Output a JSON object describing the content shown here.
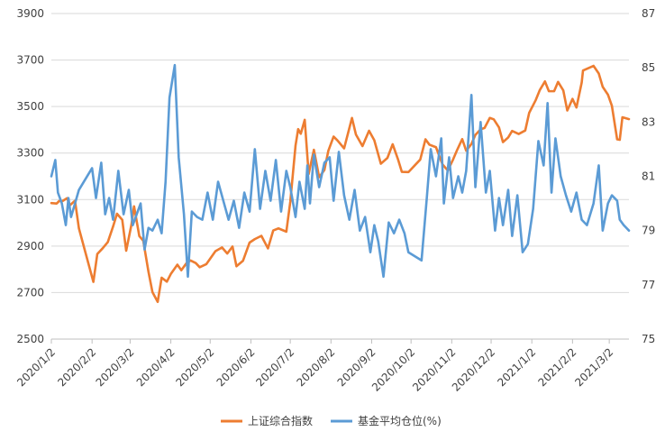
{
  "chart_data": {
    "type": "line",
    "title": "",
    "xlabel": "",
    "ylabel": "",
    "x_ticks": [
      "2020/1/2",
      "2020/2/2",
      "2020/3/2",
      "2020/4/2",
      "2020/5/2",
      "2020/6/2",
      "2020/7/2",
      "2020/8/2",
      "2020/9/2",
      "2020/10/2",
      "2020/11/2",
      "2020/12/2",
      "2021/1/2",
      "2021/2/2",
      "2021/3/2"
    ],
    "xlim": [
      "2020-01-02",
      "2021-03-17"
    ],
    "y_left": {
      "ylim": [
        2500,
        3900
      ],
      "ticks": [
        "2500",
        "2700",
        "2900",
        "3100",
        "3300",
        "3500",
        "3700",
        "3900"
      ]
    },
    "y_right": {
      "ylim": [
        75,
        87
      ],
      "ticks": [
        "75",
        "77",
        "79",
        "81",
        "83",
        "85",
        "87"
      ]
    },
    "grid": "horizontal",
    "legend_position": "bottom",
    "series": [
      {
        "name": "上证综合指数",
        "axis": "left",
        "color": "#ED7D31",
        "points": [
          [
            "2020-01-02",
            3085
          ],
          [
            "2020-01-06",
            3083
          ],
          [
            "2020-01-08",
            3094
          ],
          [
            "2020-01-10",
            3092
          ],
          [
            "2020-01-14",
            3106
          ],
          [
            "2020-01-16",
            3075
          ],
          [
            "2020-01-20",
            3095
          ],
          [
            "2020-01-23",
            2976
          ],
          [
            "2020-02-03",
            2746
          ],
          [
            "2020-02-06",
            2866
          ],
          [
            "2020-02-10",
            2890
          ],
          [
            "2020-02-14",
            2917
          ],
          [
            "2020-02-18",
            2984
          ],
          [
            "2020-02-21",
            3039
          ],
          [
            "2020-02-25",
            3013
          ],
          [
            "2020-02-28",
            2880
          ],
          [
            "2020-03-03",
            2992
          ],
          [
            "2020-03-05",
            3071
          ],
          [
            "2020-03-09",
            2943
          ],
          [
            "2020-03-12",
            2923
          ],
          [
            "2020-03-16",
            2789
          ],
          [
            "2020-03-19",
            2702
          ],
          [
            "2020-03-23",
            2660
          ],
          [
            "2020-03-26",
            2764
          ],
          [
            "2020-03-30",
            2747
          ],
          [
            "2020-04-02",
            2780
          ],
          [
            "2020-04-07",
            2820
          ],
          [
            "2020-04-10",
            2796
          ],
          [
            "2020-04-14",
            2827
          ],
          [
            "2020-04-17",
            2838
          ],
          [
            "2020-04-21",
            2827
          ],
          [
            "2020-04-24",
            2809
          ],
          [
            "2020-04-29",
            2822
          ],
          [
            "2020-05-06",
            2878
          ],
          [
            "2020-05-11",
            2894
          ],
          [
            "2020-05-15",
            2868
          ],
          [
            "2020-05-19",
            2898
          ],
          [
            "2020-05-22",
            2813
          ],
          [
            "2020-05-27",
            2837
          ],
          [
            "2020-06-01",
            2915
          ],
          [
            "2020-06-05",
            2930
          ],
          [
            "2020-06-10",
            2944
          ],
          [
            "2020-06-15",
            2890
          ],
          [
            "2020-06-19",
            2967
          ],
          [
            "2020-06-23",
            2976
          ],
          [
            "2020-06-29",
            2962
          ],
          [
            "2020-07-02",
            3090
          ],
          [
            "2020-07-06",
            3332
          ],
          [
            "2020-07-08",
            3403
          ],
          [
            "2020-07-10",
            3383
          ],
          [
            "2020-07-13",
            3443
          ],
          [
            "2020-07-16",
            3210
          ],
          [
            "2020-07-20",
            3314
          ],
          [
            "2020-07-24",
            3196
          ],
          [
            "2020-07-28",
            3227
          ],
          [
            "2020-07-31",
            3310
          ],
          [
            "2020-08-04",
            3371
          ],
          [
            "2020-08-07",
            3354
          ],
          [
            "2020-08-12",
            3320
          ],
          [
            "2020-08-18",
            3451
          ],
          [
            "2020-08-21",
            3380
          ],
          [
            "2020-08-26",
            3330
          ],
          [
            "2020-08-31",
            3396
          ],
          [
            "2020-09-04",
            3355
          ],
          [
            "2020-09-09",
            3254
          ],
          [
            "2020-09-14",
            3279
          ],
          [
            "2020-09-18",
            3338
          ],
          [
            "2020-09-22",
            3274
          ],
          [
            "2020-09-25",
            3219
          ],
          [
            "2020-09-30",
            3218
          ],
          [
            "2020-10-09",
            3272
          ],
          [
            "2020-10-13",
            3359
          ],
          [
            "2020-10-16",
            3336
          ],
          [
            "2020-10-21",
            3325
          ],
          [
            "2020-10-26",
            3251
          ],
          [
            "2020-10-30",
            3225
          ],
          [
            "2020-11-03",
            3272
          ],
          [
            "2020-11-06",
            3312
          ],
          [
            "2020-11-10",
            3360
          ],
          [
            "2020-11-13",
            3310
          ],
          [
            "2020-11-17",
            3339
          ],
          [
            "2020-11-20",
            3378
          ],
          [
            "2020-11-24",
            3402
          ],
          [
            "2020-11-27",
            3408
          ],
          [
            "2020-12-01",
            3451
          ],
          [
            "2020-12-04",
            3445
          ],
          [
            "2020-12-08",
            3410
          ],
          [
            "2020-12-11",
            3347
          ],
          [
            "2020-12-15",
            3367
          ],
          [
            "2020-12-18",
            3395
          ],
          [
            "2020-12-23",
            3382
          ],
          [
            "2020-12-28",
            3397
          ],
          [
            "2020-12-31",
            3473
          ],
          [
            "2021-01-05",
            3528
          ],
          [
            "2021-01-08",
            3570
          ],
          [
            "2021-01-12",
            3608
          ],
          [
            "2021-01-15",
            3566
          ],
          [
            "2021-01-19",
            3566
          ],
          [
            "2021-01-22",
            3606
          ],
          [
            "2021-01-26",
            3569
          ],
          [
            "2021-01-29",
            3483
          ],
          [
            "2021-02-02",
            3533
          ],
          [
            "2021-02-05",
            3496
          ],
          [
            "2021-02-09",
            3603
          ],
          [
            "2021-02-10",
            3655
          ],
          [
            "2021-02-18",
            3675
          ],
          [
            "2021-02-22",
            3642
          ],
          [
            "2021-02-25",
            3585
          ],
          [
            "2021-03-01",
            3551
          ],
          [
            "2021-03-04",
            3503
          ],
          [
            "2021-03-08",
            3359
          ],
          [
            "2021-03-10",
            3357
          ],
          [
            "2021-03-12",
            3454
          ],
          [
            "2021-03-17",
            3446
          ]
        ]
      },
      {
        "name": "基金平均仓位(%)",
        "axis": "right",
        "color": "#5B9BD5",
        "points": [
          [
            "2020-01-02",
            81.0
          ],
          [
            "2020-01-05",
            81.6
          ],
          [
            "2020-01-07",
            80.4
          ],
          [
            "2020-01-10",
            80.0
          ],
          [
            "2020-01-13",
            79.2
          ],
          [
            "2020-01-15",
            80.2
          ],
          [
            "2020-01-17",
            79.5
          ],
          [
            "2020-01-20",
            80.0
          ],
          [
            "2020-01-23",
            80.5
          ],
          [
            "2020-02-02",
            81.3
          ],
          [
            "2020-02-05",
            80.2
          ],
          [
            "2020-02-09",
            81.5
          ],
          [
            "2020-02-12",
            79.6
          ],
          [
            "2020-02-15",
            80.2
          ],
          [
            "2020-02-18",
            79.4
          ],
          [
            "2020-02-22",
            81.2
          ],
          [
            "2020-02-26",
            79.6
          ],
          [
            "2020-03-01",
            80.5
          ],
          [
            "2020-03-04",
            79.2
          ],
          [
            "2020-03-07",
            79.6
          ],
          [
            "2020-03-10",
            80.0
          ],
          [
            "2020-03-13",
            78.3
          ],
          [
            "2020-03-16",
            79.1
          ],
          [
            "2020-03-19",
            79.0
          ],
          [
            "2020-03-23",
            79.4
          ],
          [
            "2020-03-26",
            78.9
          ],
          [
            "2020-03-29",
            80.8
          ],
          [
            "2020-04-01",
            83.9
          ],
          [
            "2020-04-05",
            85.1
          ],
          [
            "2020-04-08",
            81.7
          ],
          [
            "2020-04-12",
            79.6
          ],
          [
            "2020-04-15",
            77.3
          ],
          [
            "2020-04-18",
            79.7
          ],
          [
            "2020-04-22",
            79.5
          ],
          [
            "2020-04-26",
            79.4
          ],
          [
            "2020-04-30",
            80.4
          ],
          [
            "2020-05-04",
            79.4
          ],
          [
            "2020-05-08",
            80.8
          ],
          [
            "2020-05-12",
            80.1
          ],
          [
            "2020-05-16",
            79.4
          ],
          [
            "2020-05-20",
            80.1
          ],
          [
            "2020-05-24",
            79.1
          ],
          [
            "2020-05-28",
            80.4
          ],
          [
            "2020-06-01",
            79.7
          ],
          [
            "2020-06-05",
            82.0
          ],
          [
            "2020-06-09",
            79.8
          ],
          [
            "2020-06-13",
            81.2
          ],
          [
            "2020-06-17",
            80.1
          ],
          [
            "2020-06-21",
            81.6
          ],
          [
            "2020-06-25",
            79.7
          ],
          [
            "2020-06-29",
            81.2
          ],
          [
            "2020-07-02",
            80.6
          ],
          [
            "2020-07-06",
            79.5
          ],
          [
            "2020-07-09",
            80.8
          ],
          [
            "2020-07-13",
            79.8
          ],
          [
            "2020-07-15",
            81.4
          ],
          [
            "2020-07-17",
            80.0
          ],
          [
            "2020-07-20",
            81.8
          ],
          [
            "2020-07-24",
            80.6
          ],
          [
            "2020-07-28",
            81.5
          ],
          [
            "2020-08-01",
            81.7
          ],
          [
            "2020-08-04",
            80.1
          ],
          [
            "2020-08-08",
            81.9
          ],
          [
            "2020-08-12",
            80.3
          ],
          [
            "2020-08-16",
            79.4
          ],
          [
            "2020-08-20",
            80.5
          ],
          [
            "2020-08-24",
            79.0
          ],
          [
            "2020-08-28",
            79.5
          ],
          [
            "2020-09-01",
            78.2
          ],
          [
            "2020-09-04",
            79.2
          ],
          [
            "2020-09-07",
            78.6
          ],
          [
            "2020-09-11",
            77.3
          ],
          [
            "2020-09-15",
            79.3
          ],
          [
            "2020-09-19",
            78.9
          ],
          [
            "2020-09-23",
            79.4
          ],
          [
            "2020-09-27",
            78.9
          ],
          [
            "2020-09-30",
            78.2
          ],
          [
            "2020-10-10",
            77.9
          ],
          [
            "2020-10-14",
            80.2
          ],
          [
            "2020-10-17",
            82.0
          ],
          [
            "2020-10-21",
            81.0
          ],
          [
            "2020-10-25",
            82.4
          ],
          [
            "2020-10-27",
            80.0
          ],
          [
            "2020-10-31",
            81.7
          ],
          [
            "2020-11-03",
            80.2
          ],
          [
            "2020-11-07",
            81.0
          ],
          [
            "2020-11-10",
            80.4
          ],
          [
            "2020-11-13",
            81.2
          ],
          [
            "2020-11-17",
            84.0
          ],
          [
            "2020-11-20",
            80.6
          ],
          [
            "2020-11-24",
            83.0
          ],
          [
            "2020-11-28",
            80.4
          ],
          [
            "2020-12-01",
            81.2
          ],
          [
            "2020-12-05",
            79.0
          ],
          [
            "2020-12-08",
            80.2
          ],
          [
            "2020-12-11",
            79.2
          ],
          [
            "2020-12-15",
            80.5
          ],
          [
            "2020-12-18",
            78.8
          ],
          [
            "2020-12-22",
            80.3
          ],
          [
            "2020-12-26",
            78.2
          ],
          [
            "2020-12-30",
            78.5
          ],
          [
            "2021-01-03",
            79.8
          ],
          [
            "2021-01-07",
            82.3
          ],
          [
            "2021-01-11",
            81.4
          ],
          [
            "2021-01-14",
            83.7
          ],
          [
            "2021-01-17",
            80.4
          ],
          [
            "2021-01-20",
            82.4
          ],
          [
            "2021-01-24",
            81.0
          ],
          [
            "2021-01-28",
            80.3
          ],
          [
            "2021-02-01",
            79.7
          ],
          [
            "2021-02-05",
            80.4
          ],
          [
            "2021-02-09",
            79.4
          ],
          [
            "2021-02-13",
            79.2
          ],
          [
            "2021-02-18",
            80.0
          ],
          [
            "2021-02-22",
            81.4
          ],
          [
            "2021-02-25",
            79.0
          ],
          [
            "2021-03-01",
            80.0
          ],
          [
            "2021-03-04",
            80.3
          ],
          [
            "2021-03-08",
            80.1
          ],
          [
            "2021-03-10",
            79.4
          ],
          [
            "2021-03-13",
            79.2
          ],
          [
            "2021-03-17",
            79.0
          ]
        ]
      }
    ]
  }
}
